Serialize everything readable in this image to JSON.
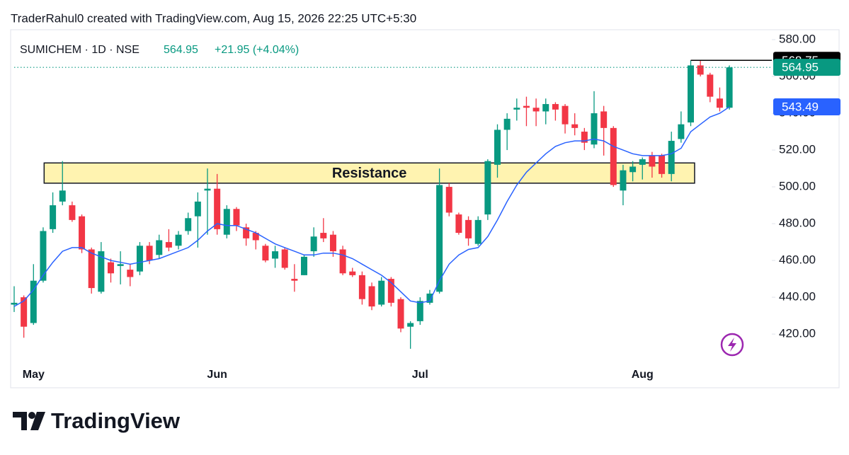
{
  "attribution": "TraderRahul0 created with TradingView.com, Aug 15, 2026 22:25 UTC+5:30",
  "brand": "TradingView",
  "chart_data": {
    "type": "candlestick",
    "symbol": "SUMICHEM · 1D · NSE",
    "last_price": 564.95,
    "change": "+21.95 (+4.04%)",
    "up_color": "#089981",
    "down_color": "#f23645",
    "categories": [
      null,
      null,
      "May",
      null,
      null,
      null,
      null,
      null,
      null,
      null,
      null,
      null,
      null,
      null,
      null,
      null,
      null,
      null,
      null,
      null,
      null,
      "Jun",
      null,
      null,
      null,
      null,
      null,
      null,
      null,
      null,
      null,
      null,
      null,
      null,
      null,
      null,
      null,
      null,
      null,
      null,
      null,
      null,
      "Jul",
      null,
      null,
      null,
      null,
      null,
      null,
      null,
      null,
      null,
      null,
      null,
      null,
      null,
      null,
      null,
      null,
      null,
      null,
      null,
      null,
      null,
      null,
      "Aug",
      null,
      null,
      null,
      null,
      null,
      null,
      null,
      null,
      null
    ],
    "open": [
      436,
      440,
      426,
      449,
      477,
      492,
      490,
      484,
      466,
      443,
      459,
      457,
      455,
      454,
      468,
      463,
      470,
      468,
      476,
      484,
      498,
      499,
      474,
      488,
      478,
      475,
      468,
      461,
      466,
      450,
      452,
      465,
      475,
      474,
      466,
      454,
      452,
      446,
      436,
      450,
      439,
      424,
      427,
      437,
      443,
      500,
      485,
      482,
      469,
      485,
      512,
      531,
      542,
      544,
      543,
      541,
      545,
      544,
      534,
      530,
      523,
      541,
      532,
      498,
      508,
      512,
      517,
      517,
      507,
      526,
      535,
      566,
      561,
      548,
      543
    ],
    "high": [
      446,
      441,
      458,
      478,
      497,
      514,
      492,
      485,
      467,
      470,
      461,
      465,
      458,
      470,
      470,
      474,
      477,
      476,
      486,
      497,
      510,
      507,
      490,
      489,
      480,
      476,
      469,
      468,
      467,
      458,
      463,
      478,
      483,
      476,
      468,
      456,
      454,
      448,
      451,
      451,
      440,
      427,
      440,
      444,
      510,
      502,
      486,
      484,
      484,
      515,
      534,
      540,
      548,
      549,
      548,
      548,
      546,
      545,
      540,
      532,
      552,
      544,
      533,
      512,
      514,
      516,
      519,
      518,
      530,
      541,
      568.75,
      568.75,
      562,
      554,
      566
    ],
    "low": [
      432,
      418,
      425,
      448,
      475,
      490,
      481,
      464,
      442,
      442,
      448,
      447,
      446,
      452,
      458,
      461,
      465,
      466,
      474,
      467,
      474,
      474,
      472,
      476,
      468,
      466,
      459,
      456,
      455,
      443,
      452,
      462,
      470,
      462,
      452,
      451,
      436,
      433,
      435,
      435,
      421,
      412,
      425,
      436,
      442,
      484,
      474,
      468,
      468,
      482,
      505,
      520,
      536,
      533,
      533,
      534,
      536,
      529,
      528,
      520,
      521,
      517,
      500,
      490,
      503,
      504,
      505,
      505,
      503,
      524,
      533,
      560,
      546,
      541,
      542
    ],
    "close": [
      437,
      424,
      449,
      476,
      490,
      498,
      482,
      466,
      445,
      465,
      453,
      458,
      451,
      468,
      460,
      471,
      467,
      474,
      483,
      492,
      499,
      477,
      488,
      479,
      472,
      471,
      460,
      465,
      456,
      449,
      462,
      473,
      472,
      465,
      453,
      452,
      439,
      435,
      449,
      437,
      423,
      426,
      438,
      442,
      501,
      486,
      475,
      472,
      482,
      514,
      531,
      537,
      543,
      543,
      541,
      545,
      542,
      534,
      532,
      524,
      540,
      532,
      501,
      509,
      511,
      515,
      511,
      507,
      525,
      534,
      566,
      561,
      549,
      543,
      564.95
    ],
    "ma": {
      "color": "#2962ff",
      "values": [
        435,
        438,
        444,
        452,
        459,
        465,
        467,
        467,
        464,
        462,
        460,
        459,
        458,
        459,
        460,
        461,
        463,
        465,
        467,
        471,
        476,
        480,
        479,
        479,
        477,
        475,
        472,
        469,
        467,
        465,
        463,
        463,
        464,
        464,
        463,
        461,
        458,
        455,
        452,
        448,
        443,
        438,
        437,
        438,
        449,
        458,
        463,
        466,
        467,
        473,
        482,
        492,
        501,
        508,
        513,
        518,
        522,
        524,
        525,
        525,
        526,
        525,
        522,
        520,
        518,
        517,
        517,
        517,
        518,
        521,
        530,
        534,
        538,
        540,
        543.49
      ]
    },
    "ylim": [
      403.5,
      585.4
    ],
    "yticks": [
      {
        "value": 420,
        "label": "420.00"
      },
      {
        "value": 440,
        "label": "440.00"
      },
      {
        "value": 460,
        "label": "460.00"
      },
      {
        "value": 480,
        "label": "480.00"
      },
      {
        "value": 500,
        "label": "500.00"
      },
      {
        "value": 520,
        "label": "520.00"
      },
      {
        "value": 540,
        "label": "540.00"
      },
      {
        "value": 560,
        "label": "560.00"
      },
      {
        "value": 580,
        "label": "580.00"
      }
    ],
    "price_labels": [
      {
        "value": 568.75,
        "color": "#000000",
        "from_index": 70
      },
      {
        "value": 564.95,
        "color": "#089981",
        "from_index": 0
      },
      {
        "value": 543.49,
        "color": "#2962ff"
      }
    ],
    "annotations": [
      {
        "text": "Resistance",
        "y_range": [
          502,
          513
        ],
        "x_range": [
          3.1,
          70.4
        ],
        "color": "#fff3b0"
      }
    ]
  }
}
